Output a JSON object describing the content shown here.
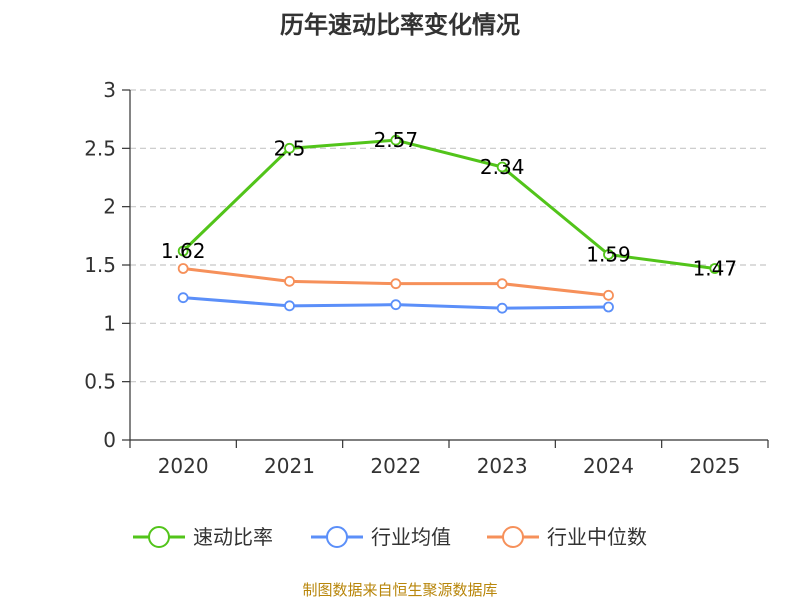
{
  "chart_data": {
    "type": "line",
    "title": "历年速动比率变化情况",
    "categories": [
      "2020",
      "2021",
      "2022",
      "2023",
      "2024",
      "2025"
    ],
    "ylim": [
      0,
      3
    ],
    "yticks": [
      "0",
      "0.5",
      "1",
      "1.5",
      "2",
      "2.5",
      "3"
    ],
    "ytick_values": [
      0,
      0.5,
      1,
      1.5,
      2,
      2.5,
      3
    ],
    "grid": true,
    "legend_position": "bottom",
    "series": [
      {
        "name": "速动比率",
        "color": "#52c41a",
        "values": [
          1.62,
          2.5,
          2.57,
          2.34,
          1.59,
          1.47
        ],
        "labels": [
          "1.62",
          "2.5",
          "2.57",
          "2.34",
          "1.59",
          "1.47"
        ]
      },
      {
        "name": "行业均值",
        "color": "#5b8ff9",
        "values": [
          1.22,
          1.15,
          1.16,
          1.13,
          1.14,
          null
        ]
      },
      {
        "name": "行业中位数",
        "color": "#f6905a",
        "values": [
          1.47,
          1.36,
          1.34,
          1.34,
          1.24,
          null
        ]
      }
    ]
  },
  "source": "制图数据来自恒生聚源数据库"
}
